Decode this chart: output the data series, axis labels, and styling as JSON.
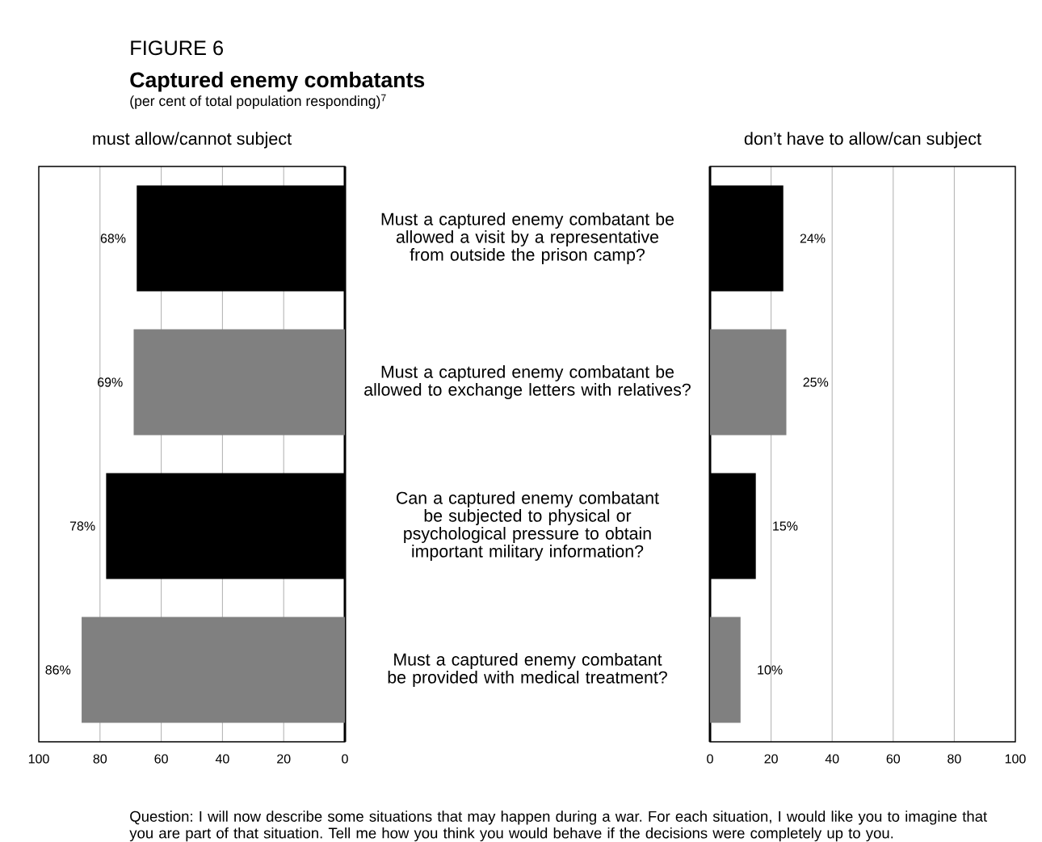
{
  "chart_data": [
    {
      "type": "bar",
      "orientation": "horizontal",
      "title": "Captured enemy combatants",
      "subtitle": "(per cent of total population responding)$^{7}$",
      "xlabel": "must allow/cannot subject",
      "annotations": [
        "FIGURE 6",
        "Question: I will now describe some situations that may happen during a war. For each situation, I would like you to imagine that you are part of that situation. Tell me how you think you would behave if the decisions were completely up to you."
      ],
      "categories": [
        "Must a captured enemy combatant be allowed a visit by a representative from outside the prison camp?",
        "Must a captured enemy combatant be allowed to exchange letters with relatives?",
        "Can a captured enemy combatant be subjected to physical or psychological pressure to obtain important military information?",
        "Must a captured enemy combatant be provided with medical treatment?"
      ],
      "values": [
        68,
        69,
        78,
        86
      ],
      "colors": [
        "#000000",
        "#808080",
        "#000000",
        "#808080"
      ],
      "value_labels": [
        "68%",
        "69%",
        "78%",
        "86%"
      ],
      "xlim": [
        100,
        0
      ],
      "xticks": [
        100,
        80,
        60,
        40,
        20,
        0
      ],
      "grid": "x"
    },
    {
      "type": "bar",
      "orientation": "horizontal",
      "xlabel": "don’t have to allow/can subject",
      "categories": [
        null,
        null,
        null,
        null
      ],
      "values": [
        24,
        25,
        15,
        10
      ],
      "colors": [
        "#000000",
        "#808080",
        "#000000",
        "#808080"
      ],
      "value_labels": [
        "24%",
        "25%",
        "15%",
        "10%"
      ],
      "xlim": [
        0,
        100
      ],
      "xticks": [
        0,
        20,
        40,
        60,
        80,
        100
      ],
      "grid": "x"
    }
  ]
}
